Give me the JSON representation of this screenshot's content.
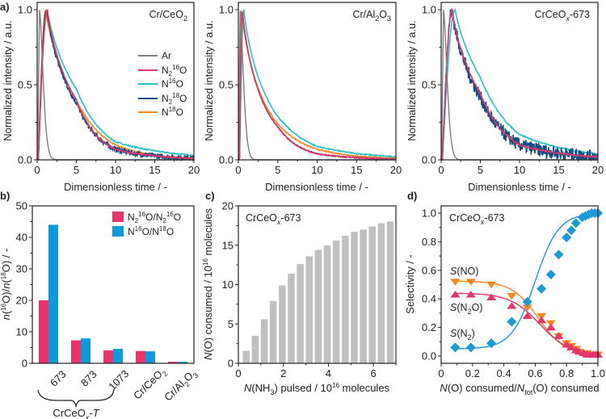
{
  "chart_data": [
    {
      "panel": "a",
      "type": "line",
      "annotation": "Cr/CeO2",
      "annotation_parts": [
        "Cr/CeO",
        "2",
        ""
      ],
      "xlabel": "Dimensionless time / -",
      "ylabel": "Normalized intensity / a.u.",
      "xlim": [
        0,
        20
      ],
      "ylim": [
        0,
        1.0
      ],
      "xticks": [
        0,
        5,
        10,
        15,
        20
      ],
      "yticks": [
        0.0,
        0.5,
        1.0
      ],
      "ytick_labels": [
        "0.0",
        "0.5",
        "1.0"
      ],
      "legend": [
        "Ar",
        "N2 16O",
        "N 16O",
        "N2 18O",
        "N 18O"
      ],
      "legend_placement": "center-right",
      "series": [
        {
          "name": "Ar",
          "color": "#7f7f7f",
          "peak_time": 0.3,
          "peak": 1.0,
          "decay_to_zero_at": 2.6
        },
        {
          "name": "N2 16O",
          "color": "#e8336b",
          "peak_time": 1.3,
          "peak": 1.0,
          "value_at_5": 0.4,
          "value_at_10": 0.07,
          "value_at_20": 0.01
        },
        {
          "name": "N 16O",
          "color": "#22c4c4",
          "peak_time": 1.3,
          "peak": 1.0,
          "value_at_5": 0.47,
          "value_at_10": 0.12,
          "value_at_20": 0.03
        },
        {
          "name": "N2 18O",
          "color": "#104f82",
          "peak_time": 1.2,
          "peak": 1.0,
          "value_at_5": 0.38,
          "value_at_10": 0.07,
          "value_at_20": 0.01,
          "noisy": true
        },
        {
          "name": "N 18O",
          "color": "#f7861c",
          "peak_time": 1.1,
          "peak": 1.0,
          "value_at_5": 0.4,
          "value_at_10": 0.1,
          "value_at_20": 0.01
        }
      ]
    },
    {
      "panel": "a2",
      "type": "line",
      "annotation": "Cr/Al2O3",
      "annotation_parts": [
        "Cr/Al",
        "2",
        "O",
        "3"
      ],
      "xlabel": "Dimensionless time / -",
      "ylabel": "Normalized intensity / a.u.",
      "xlim": [
        0,
        20
      ],
      "ylim": [
        0,
        1.0
      ],
      "xticks": [
        0,
        5,
        10,
        15,
        20
      ],
      "yticks": [
        0.0,
        0.5,
        1.0
      ],
      "ytick_labels": [
        "0.0",
        "0.5",
        "1.0"
      ],
      "series": [
        {
          "name": "Ar",
          "color": "#7f7f7f",
          "peak_time": 0.2,
          "peak": 1.0,
          "decay_to_zero_at": 2.4
        },
        {
          "name": "N2 16O",
          "color": "#e8336b",
          "peak_time": 0.5,
          "peak": 1.0,
          "value_at_5": 0.22,
          "value_at_10": 0.04,
          "value_at_20": 0.005
        },
        {
          "name": "N 16O",
          "color": "#22c4c4",
          "peak_time": 0.7,
          "peak": 1.0,
          "value_at_5": 0.29,
          "value_at_10": 0.09,
          "value_at_20": 0.02
        },
        {
          "name": "N2 18O",
          "color": "#104f82",
          "peak_time": 0.5,
          "peak": 1.0,
          "value_at_5": 0.22,
          "value_at_10": 0.04,
          "value_at_20": 0.005
        },
        {
          "name": "N 18O",
          "color": "#f7861c",
          "peak_time": 0.4,
          "peak": 1.0,
          "value_at_5": 0.24,
          "value_at_10": 0.07,
          "value_at_20": 0.01
        }
      ]
    },
    {
      "panel": "a3",
      "type": "line",
      "annotation": "CrCeOx-673",
      "xlabel": "Dimensionless time / -",
      "ylabel": "Normalized intensity / a.u.",
      "xlim": [
        0,
        20
      ],
      "ylim": [
        0,
        1.0
      ],
      "xticks": [
        0,
        5,
        10,
        15,
        20
      ],
      "yticks": [
        0.0,
        0.5,
        1.0
      ],
      "ytick_labels": [
        "0.0",
        "0.5",
        "1.0"
      ],
      "series": [
        {
          "name": "Ar",
          "color": "#7f7f7f",
          "peak_time": 0.3,
          "peak": 1.0,
          "decay_to_zero_at": 2.6
        },
        {
          "name": "N2 16O",
          "color": "#e8336b",
          "peak_time": 1.4,
          "peak": 1.0,
          "value_at_5": 0.44,
          "value_at_10": 0.1,
          "value_at_20": 0.02
        },
        {
          "name": "N 16O",
          "color": "#22c4c4",
          "peak_time": 1.8,
          "peak": 1.0,
          "value_at_5": 0.55,
          "value_at_10": 0.17,
          "value_at_20": 0.04
        },
        {
          "name": "N2 18O",
          "color": "#104f82",
          "peak_time": 1.4,
          "peak": 1.0,
          "value_at_5": 0.42,
          "value_at_10": 0.1,
          "value_at_20": 0.02,
          "noisy": true
        }
      ]
    },
    {
      "panel": "b",
      "type": "bar",
      "categories": [
        "673",
        "873",
        "1073",
        "Cr/CeO2",
        "Cr/Al2O3"
      ],
      "category_group_label": "CrCeOx-T",
      "ylabel": "n(16O)/n(18O) / -",
      "ylim": [
        0,
        50
      ],
      "yticks": [
        0,
        10,
        20,
        30,
        40,
        50
      ],
      "legend_placement": "top-right",
      "series": [
        {
          "name": "N2 16O/N2 16O",
          "color": "#e8336b",
          "values": [
            20.0,
            7.3,
            4.1,
            3.9,
            0.5
          ]
        },
        {
          "name": "N 16O/N 18O",
          "color": "#0c9ad8",
          "values": [
            44.0,
            7.9,
            4.6,
            3.8,
            0.5
          ]
        }
      ]
    },
    {
      "panel": "c",
      "type": "bar",
      "annotation": "CrCeOx-673",
      "xlabel": "N(NH3) pulsed / 10^16 molecules",
      "ylabel": "N(O) consumed / 10^16 molecules",
      "xlim": [
        0,
        7
      ],
      "ylim": [
        0,
        20
      ],
      "xticks": [
        0,
        2,
        4,
        6
      ],
      "yticks": [
        0,
        5,
        10,
        15,
        20
      ],
      "color": "#c0c0c0",
      "x": [
        0.35,
        0.75,
        1.15,
        1.55,
        1.95,
        2.35,
        2.75,
        3.15,
        3.55,
        3.95,
        4.35,
        4.75,
        5.15,
        5.55,
        5.95,
        6.35,
        6.75
      ],
      "values": [
        1.6,
        3.5,
        5.6,
        7.9,
        9.9,
        11.4,
        12.6,
        13.6,
        14.4,
        15.0,
        15.6,
        16.2,
        16.7,
        17.0,
        17.4,
        17.8,
        18.0
      ]
    },
    {
      "panel": "d",
      "type": "scatter",
      "annotation": "CrCeOx-673",
      "xlabel": "N(O) consumed/N_tot(O) consumed",
      "ylabel": "Selectivity / -",
      "xlim": [
        0,
        1.0
      ],
      "ylim": [
        0,
        1.0
      ],
      "xticks": [
        0,
        0.2,
        0.4,
        0.6,
        0.8,
        1.0
      ],
      "xtick_labels": [
        "0",
        "0.2",
        "0.4",
        "0.6",
        "0.8",
        "1.0"
      ],
      "yticks": [
        0.0,
        0.2,
        0.4,
        0.6,
        0.8,
        1.0
      ],
      "ytick_labels": [
        "0.0",
        "0.2",
        "0.4",
        "0.6",
        "0.8",
        "1.0"
      ],
      "series": [
        {
          "name": "S(NO)",
          "color": "#f7861c",
          "marker": "triangle-down",
          "x": [
            0.09,
            0.19,
            0.32,
            0.45,
            0.55,
            0.64,
            0.7,
            0.75,
            0.8,
            0.83,
            0.86,
            0.88,
            0.91,
            0.93,
            0.95,
            0.97,
            0.99,
            1.0
          ],
          "y": [
            0.52,
            0.52,
            0.5,
            0.42,
            0.34,
            0.28,
            0.23,
            0.14,
            0.09,
            0.07,
            0.05,
            0.03,
            0.02,
            0.02,
            0.01,
            0.01,
            0.01,
            0.01
          ]
        },
        {
          "name": "S(N2O)",
          "color": "#e8336b",
          "marker": "triangle-up",
          "x": [
            0.09,
            0.19,
            0.32,
            0.45,
            0.55,
            0.64,
            0.7,
            0.75,
            0.8,
            0.83,
            0.86,
            0.88,
            0.91,
            0.93,
            0.95,
            0.97,
            0.99,
            1.0
          ],
          "y": [
            0.43,
            0.43,
            0.41,
            0.35,
            0.28,
            0.25,
            0.2,
            0.14,
            0.08,
            0.06,
            0.04,
            0.03,
            0.02,
            0.01,
            0.01,
            0.01,
            0.01,
            0.01
          ]
        },
        {
          "name": "S(N2)",
          "color": "#1b9ad6",
          "marker": "diamond",
          "x": [
            0.09,
            0.19,
            0.32,
            0.45,
            0.55,
            0.64,
            0.7,
            0.75,
            0.8,
            0.83,
            0.86,
            0.9,
            0.92,
            0.94,
            0.96,
            0.98,
            1.0
          ],
          "y": [
            0.06,
            0.06,
            0.09,
            0.24,
            0.38,
            0.47,
            0.57,
            0.71,
            0.83,
            0.88,
            0.93,
            0.97,
            0.98,
            0.99,
            1.0,
            1.0,
            1.0
          ]
        }
      ]
    }
  ],
  "labels": {
    "panel_a": "a)",
    "panel_b": "b)",
    "panel_c": "c)",
    "panel_d": "d)",
    "xlabel_time": "Dimensionless time / -",
    "ylabel_intensity": "Normalized intensity / a.u.",
    "annot_cr_ceo2": "Cr/CeO",
    "annot_cr_al2o3_a": "Cr/Al",
    "annot_cr_al2o3_b": "O",
    "sub_2": "2",
    "sub_3": "3",
    "sub_x": "x",
    "annot_crceox_a": "CrCeO",
    "annot_crceox_b": "-673",
    "legend_ar": "Ar",
    "legend_n": "N",
    "legend_o": "O",
    "sup_16": "16",
    "sup_18": "18",
    "b_ylabel_n1": "n",
    "b_ylabel_open": "(",
    "b_ylabel_o_close_slash": "O)/",
    "b_ylabel_tail": "O) / -",
    "b_legend1_a": "N",
    "b_legend1_b": "O/N",
    "b_legend2_a": "N",
    "b_legend2_b": "O/N",
    "b_group_a": "CrCeO",
    "b_group_b": "-",
    "b_group_t": "T",
    "cat_673": "673",
    "cat_873": "873",
    "cat_1073": "1073",
    "cat_crceo2": "Cr/CeO",
    "cat_cral2o3_a": "Cr/Al",
    "cat_cral2o3_b": "O",
    "c_ylabel_n": "N",
    "c_ylabel_mid": "(O) consumed / 10",
    "c_ylabel_tail": " molecules",
    "c_xlabel_n": "N",
    "c_xlabel_a": "(NH",
    "c_xlabel_b": ") pulsed / 10",
    "c_xlabel_tail": " molecules",
    "d_ylabel": "Selectivity / -",
    "d_xlabel_n": "N",
    "d_xlabel_a": "(O) consumed/",
    "d_xlabel_n2": "N",
    "d_xlabel_tot": "tot",
    "d_xlabel_b": "(O) consumed",
    "s_label": "S",
    "s_no": "(NO)",
    "s_n2o_a": "(N",
    "s_n2o_b": "O)",
    "s_n2_a": "(N",
    "s_n2_b": ")"
  }
}
